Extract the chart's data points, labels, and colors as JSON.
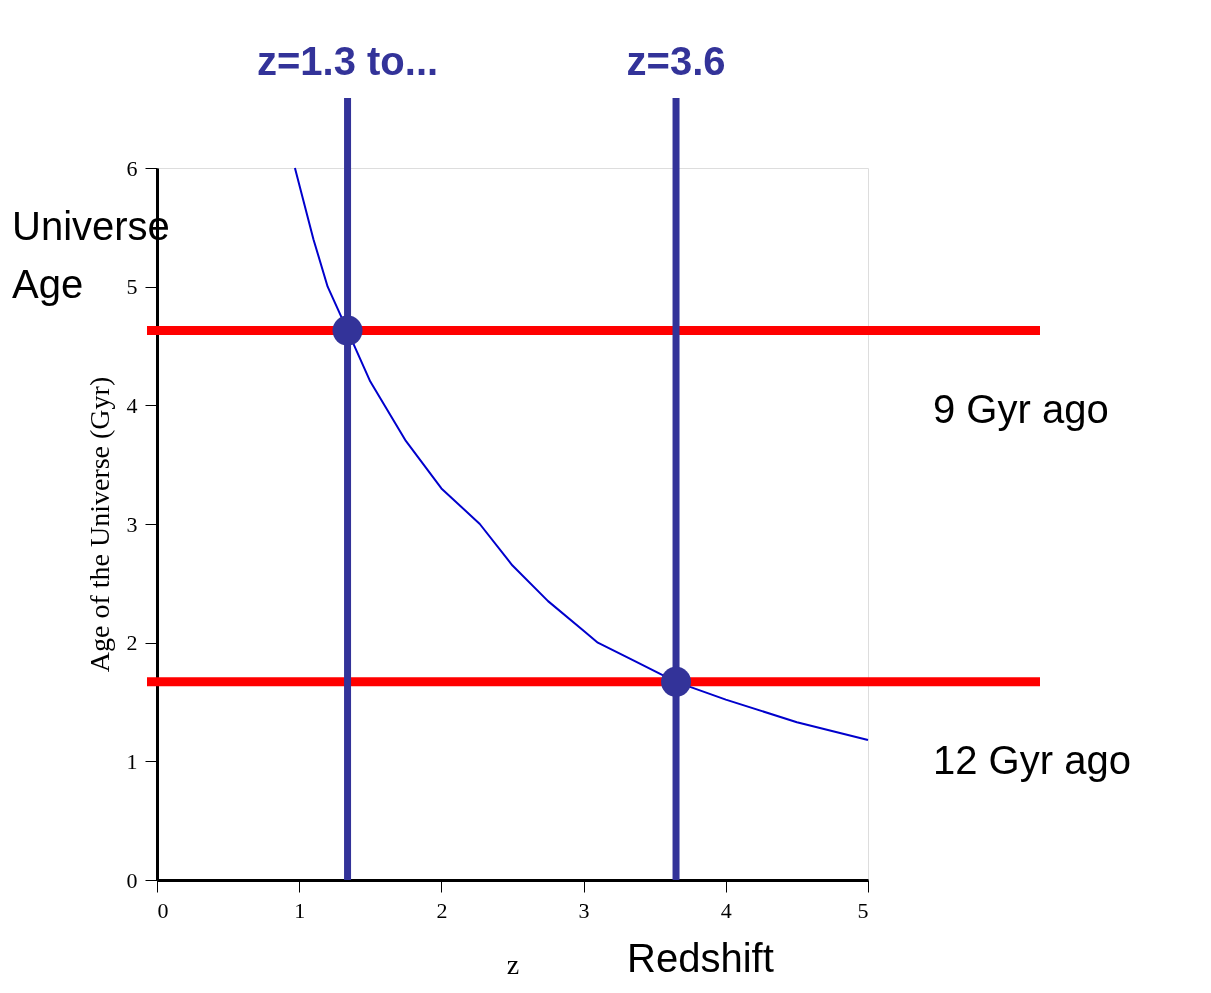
{
  "chart_data": {
    "type": "line",
    "xlabel": "z",
    "ylabel": "Age of the Universe (Gyr)",
    "xlim": [
      0,
      5
    ],
    "ylim": [
      0,
      6
    ],
    "xticks": [
      0,
      1,
      2,
      3,
      4,
      5
    ],
    "yticks": [
      0,
      1,
      2,
      3,
      4,
      5,
      6
    ],
    "grid": false,
    "series": [
      {
        "color": "#0000cc",
        "marker": "none",
        "x": [
          0.97,
          1.1,
          1.2,
          1.34,
          1.5,
          1.75,
          2,
          2.27,
          2.5,
          2.75,
          3,
          3.1,
          3.35,
          3.65,
          4,
          4.5,
          5
        ],
        "values": [
          6,
          5.4,
          5.0,
          4.63,
          4.2,
          3.7,
          3.3,
          3.0,
          2.65,
          2.35,
          2.1,
          2.0,
          1.85,
          1.67,
          1.52,
          1.33,
          1.18
        ]
      },
      {
        "type": "scatter",
        "color": "#333399",
        "marker": "circle",
        "x": [
          1.34,
          3.65
        ],
        "values": [
          4.63,
          1.67
        ]
      }
    ],
    "ref_lines": [
      {
        "axis": "y",
        "value": 4.63,
        "label": "9 Gyr ago",
        "color": "#ff0000"
      },
      {
        "axis": "y",
        "value": 1.67,
        "label": "12 Gyr ago",
        "color": "#ff0000"
      },
      {
        "axis": "x",
        "value": 1.34,
        "label": "z=1.3 to...",
        "color": "#333399"
      },
      {
        "axis": "x",
        "value": 3.65,
        "label": "z=3.6",
        "color": "#333399"
      }
    ],
    "annotations": [
      "Universe Age",
      "Redshift"
    ]
  }
}
